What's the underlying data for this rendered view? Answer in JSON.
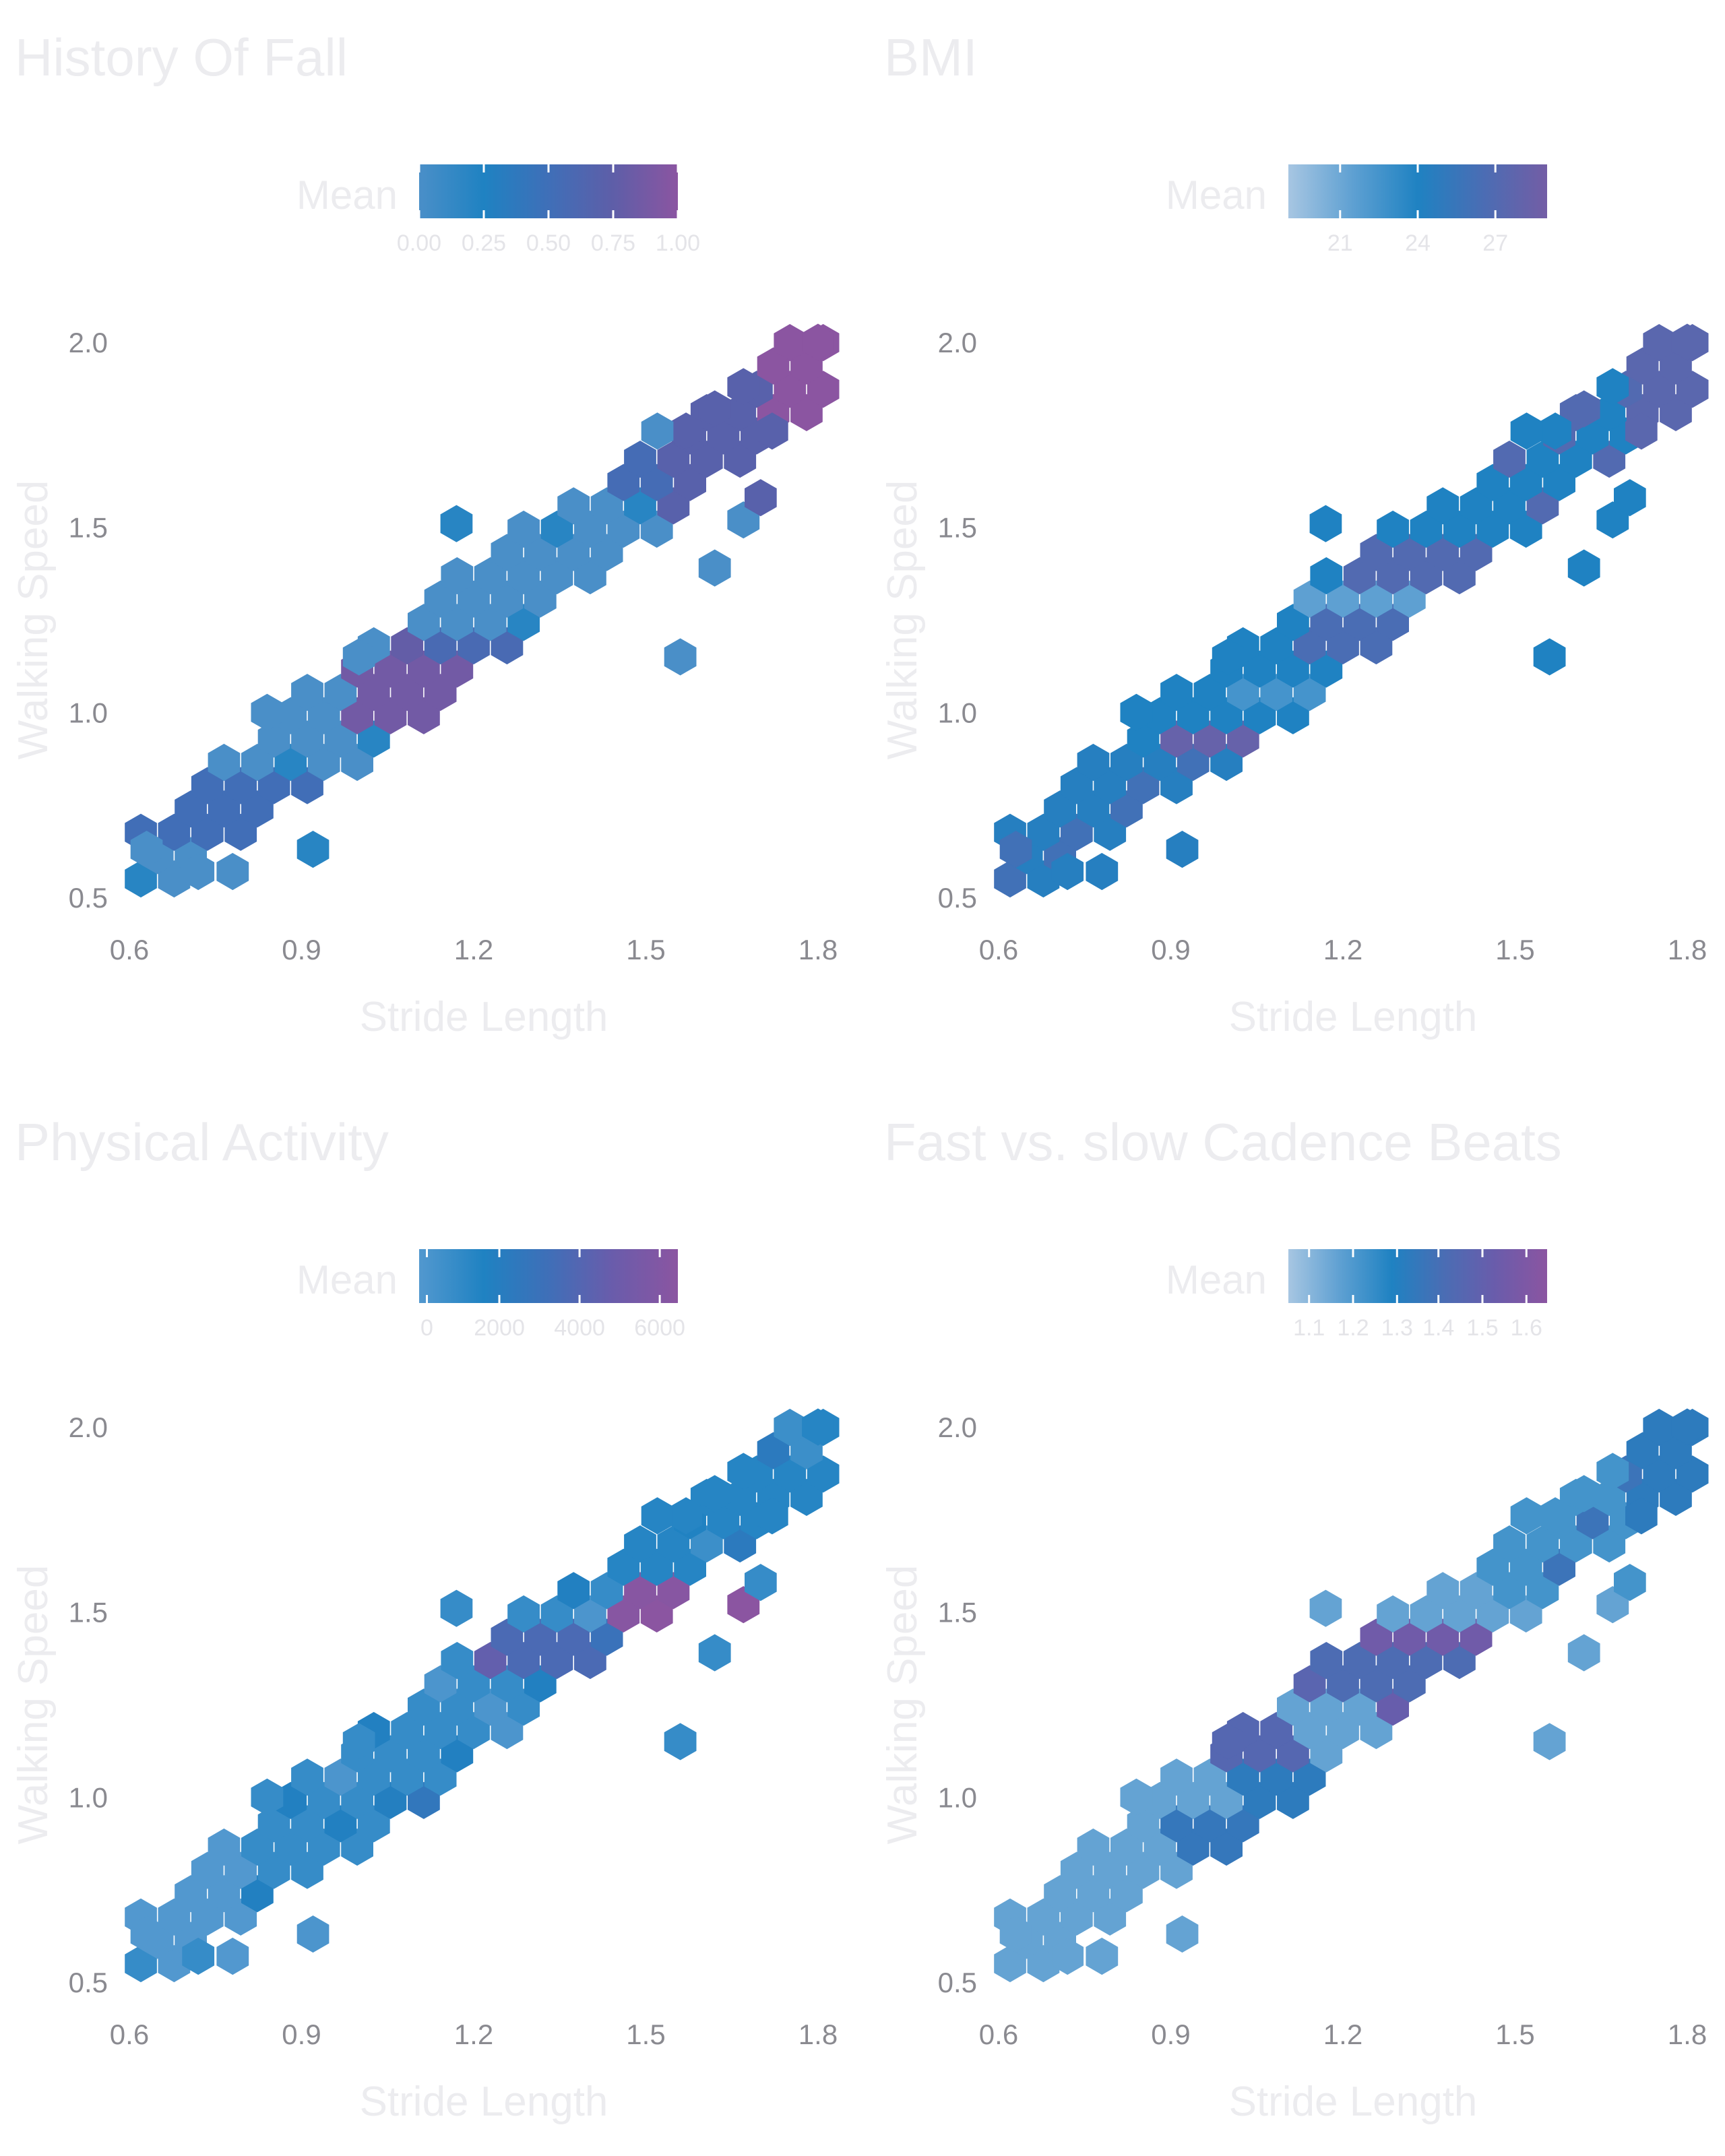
{
  "chart_data": [
    {
      "type": "hexbin",
      "title": "History Of Fall",
      "xlabel": "Stride Length",
      "ylabel": "Walking Speed",
      "xlim": [
        0.6,
        1.8
      ],
      "ylim": [
        0.5,
        2.0
      ],
      "xticks": [
        "0.6",
        "0.9",
        "1.2",
        "1.5",
        "1.8"
      ],
      "yticks": [
        "0.5",
        "1.0",
        "1.5",
        "2.0"
      ],
      "legend": {
        "title": "Mean",
        "ticks": [
          "0.00",
          "0.25",
          "0.50",
          "0.75",
          "1.00"
        ],
        "colors": [
          "#4a8fc8",
          "#1f82c2",
          "#3f6fb8",
          "#5e5ea8",
          "#8b55a1"
        ]
      },
      "bins": []
    },
    {
      "type": "hexbin",
      "title": "BMI",
      "xlabel": "Stride Length",
      "ylabel": "Walking Speed",
      "xlim": [
        0.6,
        1.8
      ],
      "ylim": [
        0.5,
        2.0
      ],
      "xticks": [
        "0.6",
        "0.9",
        "1.2",
        "1.5",
        "1.8"
      ],
      "yticks": [
        "0.5",
        "1.0",
        "1.5",
        "2.0"
      ],
      "legend": {
        "title": "Mean",
        "ticks": [
          "21",
          "24",
          "27"
        ],
        "colors": [
          "#a7c6e2",
          "#5ea0d2",
          "#1f82c2",
          "#4a6db4",
          "#735da5"
        ]
      },
      "bins": []
    },
    {
      "type": "hexbin",
      "title": "Physical Activity",
      "xlabel": "Stride Length",
      "ylabel": "Walking Speed",
      "xlim": [
        0.6,
        1.8
      ],
      "ylim": [
        0.5,
        2.0
      ],
      "xticks": [
        "0.6",
        "0.9",
        "1.2",
        "1.5",
        "1.8"
      ],
      "yticks": [
        "0.5",
        "1.0",
        "1.5",
        "2.0"
      ],
      "legend": {
        "title": "Mean",
        "ticks": [
          "0",
          "2000",
          "4000",
          "6000"
        ],
        "colors": [
          "#5298cf",
          "#1f82c2",
          "#3f6fb8",
          "#6a5cab",
          "#8b55a1"
        ]
      },
      "bins": []
    },
    {
      "type": "hexbin",
      "title": "Fast vs. slow Cadence Beats",
      "xlabel": "Stride Length",
      "ylabel": "Walking Speed",
      "xlim": [
        0.6,
        1.8
      ],
      "ylim": [
        0.5,
        2.0
      ],
      "xticks": [
        "0.6",
        "0.9",
        "1.2",
        "1.5",
        "1.8"
      ],
      "yticks": [
        "0.5",
        "1.0",
        "1.5",
        "2.0"
      ],
      "legend": {
        "title": "Mean",
        "ticks": [
          "1.1",
          "1.2",
          "1.3",
          "1.4",
          "1.5",
          "1.6"
        ],
        "colors": [
          "#a7c6e2",
          "#5ea0d2",
          "#1f82c2",
          "#4a6db4",
          "#6a5cab",
          "#8b55a1"
        ]
      },
      "bins": []
    }
  ]
}
